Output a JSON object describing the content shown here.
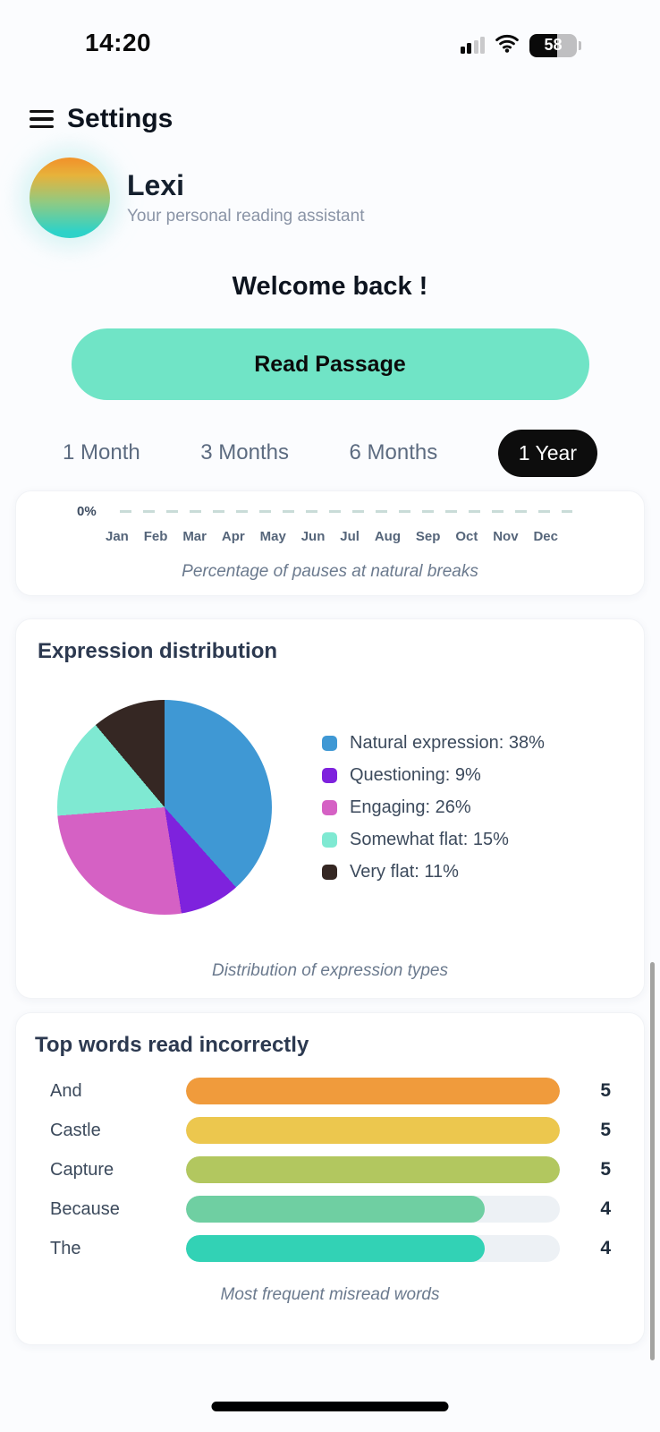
{
  "status_bar": {
    "time": "14:20",
    "battery_level": "58",
    "battery_fill_percent": 58
  },
  "header": {
    "title": "Settings"
  },
  "profile": {
    "name": "Lexi",
    "subtitle": "Your personal reading assistant"
  },
  "welcome_title": "Welcome back !",
  "read_button_label": "Read Passage",
  "time_filters": {
    "options": [
      "1 Month",
      "3 Months",
      "6 Months",
      "1 Year"
    ],
    "selected": "1 Year"
  },
  "colors": {
    "accent_mint": "#70e4c6",
    "selected_pill": "#0d0d0d",
    "bar_track": "#edf1f5"
  },
  "chart_data": [
    {
      "type": "line",
      "caption": "Percentage of pauses at natural breaks",
      "x": [
        "Jan",
        "Feb",
        "Mar",
        "Apr",
        "May",
        "Jun",
        "Jul",
        "Aug",
        "Sep",
        "Oct",
        "Nov",
        "Dec"
      ],
      "values": [
        0,
        0,
        0,
        0,
        0,
        0,
        0,
        0,
        0,
        0,
        0,
        0
      ],
      "y_tick_labels": [
        "0%"
      ],
      "line_style": "dashed",
      "line_color": "#c9dcd8",
      "grid": false,
      "legend_position": "none"
    },
    {
      "type": "pie",
      "title": "Expression distribution",
      "caption": "Distribution of expression types",
      "labels": [
        "Natural expression",
        "Questioning",
        "Engaging",
        "Somewhat flat",
        "Very flat"
      ],
      "values": [
        38,
        9,
        26,
        15,
        11
      ],
      "unit": "%",
      "colors": [
        "#3f98d4",
        "#7e22dd",
        "#d561c4",
        "#7fe9d2",
        "#352723"
      ],
      "start_angle_deg": 0,
      "direction": "clockwise",
      "legend_position": "right"
    },
    {
      "type": "bar",
      "title": "Top words read incorrectly",
      "caption": "Most frequent misread words",
      "orientation": "horizontal",
      "categories": [
        "And",
        "Castle",
        "Capture",
        "Because",
        "The"
      ],
      "values": [
        5,
        5,
        5,
        4,
        4
      ],
      "colors": [
        "#f09b3c",
        "#ecc74e",
        "#b2c75f",
        "#6fcfa2",
        "#32d2b5"
      ],
      "xlim": [
        0,
        5
      ]
    }
  ]
}
